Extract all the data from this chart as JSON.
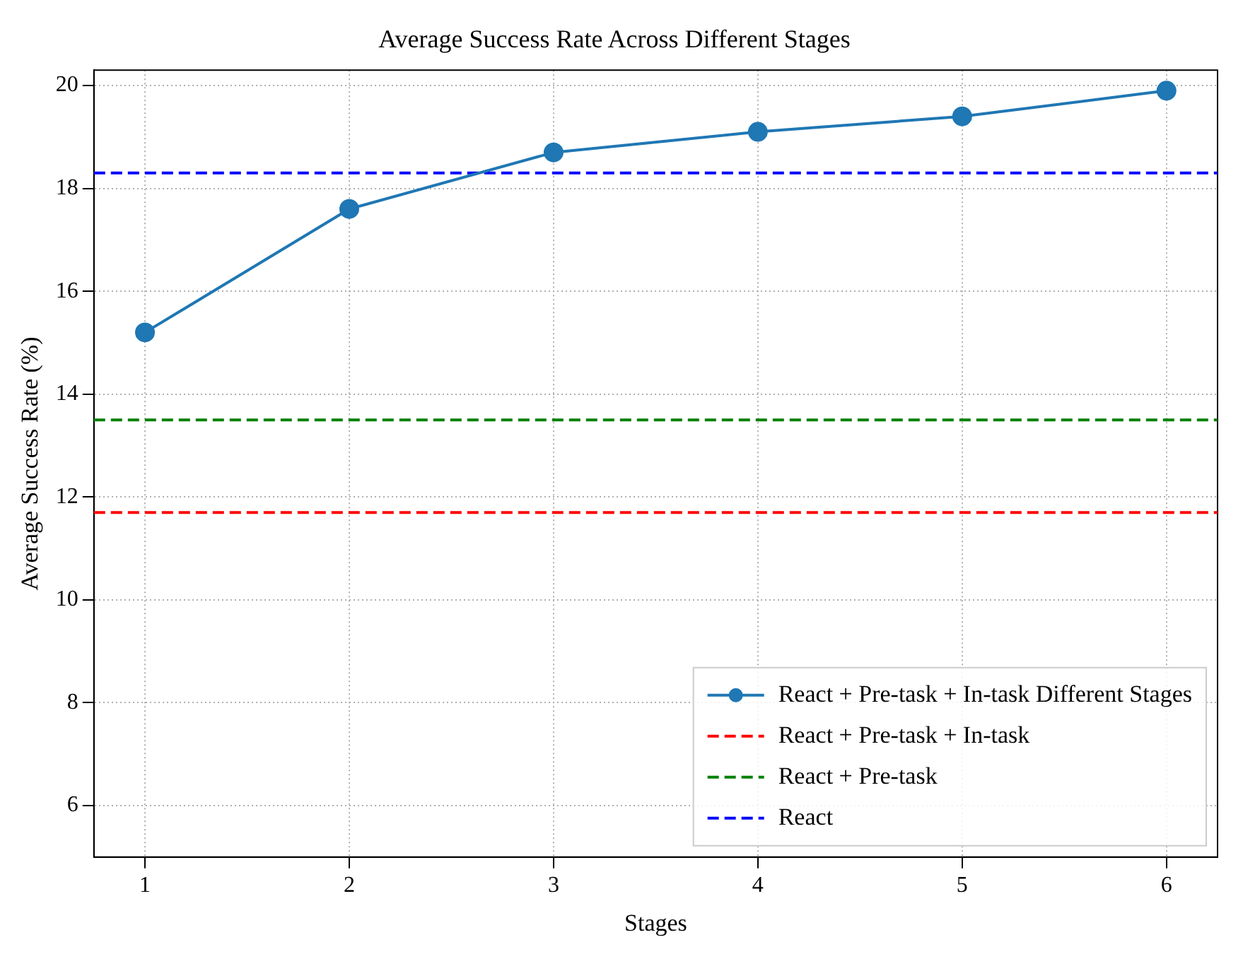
{
  "chart_data": {
    "type": "line",
    "title": "Average Success Rate Across Different Stages",
    "xlabel": "Stages",
    "ylabel": "Average Success Rate (%)",
    "x": [
      1,
      2,
      3,
      4,
      5,
      6
    ],
    "series": [
      {
        "name": "React + Pre-task + In-task Different Stages",
        "color": "#1f77b4",
        "values": [
          15.2,
          17.6,
          18.7,
          19.1,
          19.4,
          19.9
        ]
      }
    ],
    "ref_lines": [
      {
        "axis": "y",
        "value": 11.7,
        "label": "React + Pre-task + In-task",
        "color": "#ff0000",
        "line_style": "dashed"
      },
      {
        "axis": "y",
        "value": 13.5,
        "label": "React + Pre-task",
        "color": "#008000",
        "line_style": "dashed"
      },
      {
        "axis": "y",
        "value": 18.3,
        "label": "React",
        "color": "#0000ff",
        "line_style": "dashed"
      }
    ],
    "xlim": [
      0.75,
      6.25
    ],
    "xticks": [
      1,
      2,
      3,
      4,
      5,
      6
    ],
    "ylim": [
      5,
      20.3
    ],
    "yticks": [
      6,
      8,
      10,
      12,
      14,
      16,
      18,
      20
    ],
    "grid": true,
    "legend": "bottom right",
    "marker": "circle",
    "line_style": "solid"
  }
}
